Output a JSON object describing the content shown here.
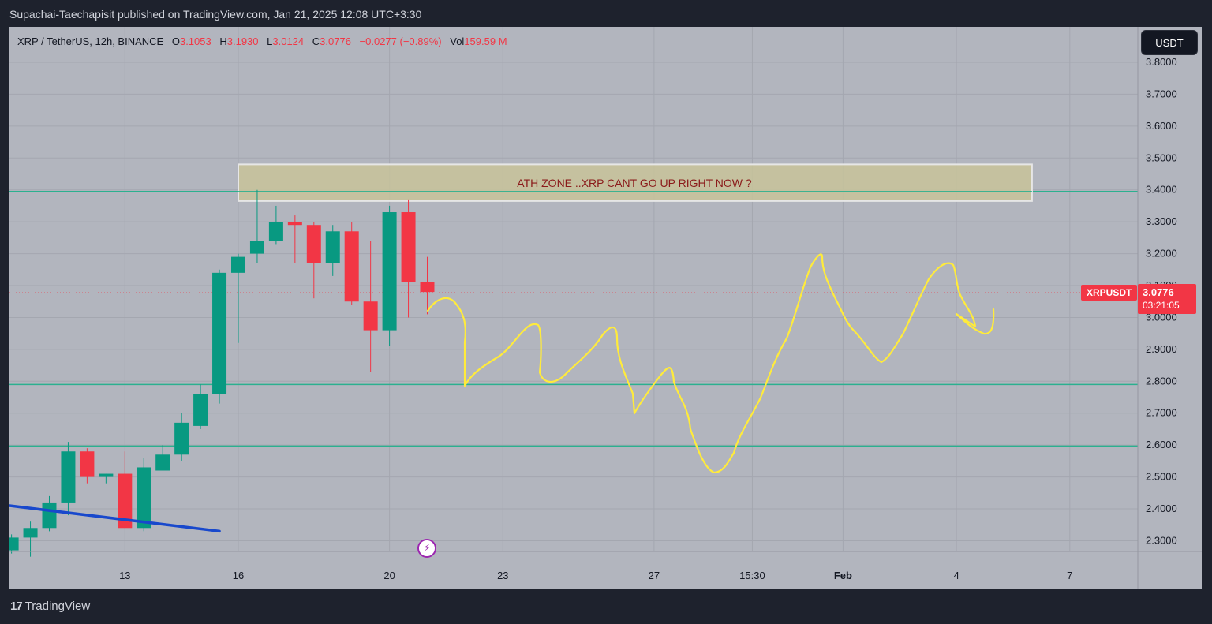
{
  "header": {
    "published": "Supachai-Taechapisit published on TradingView.com, Jan 21, 2025 12:08 UTC+3:30"
  },
  "legend": {
    "symbol": "XRP / TetherUS, 12h, BINANCE",
    "open_label": "O",
    "open": "3.1053",
    "high_label": "H",
    "high": "3.1930",
    "low_label": "L",
    "low": "3.0124",
    "close_label": "C",
    "close": "3.0776",
    "change": "−0.0277 (−0.89%)",
    "vol_label": "Vol",
    "vol": "159.59 M"
  },
  "currency_button": "USDT",
  "symbol_tag": "XRPUSDT",
  "price_tag": {
    "price": "3.0776",
    "countdown": "03:21:05"
  },
  "annotation": {
    "zone_text": "ATH ZONE ..XRP CANT GO UP RIGHT NOW ?"
  },
  "footer": {
    "logo": "17",
    "brand": "TradingView"
  },
  "colors": {
    "up": "#089981",
    "down": "#f23645",
    "background": "#b2b5be",
    "grid": "#a4a7b0",
    "level_line": "#2bb08f",
    "drawing": "#ffeb3b",
    "trendline": "#1848cc",
    "zone_fill": "#c8c39a"
  },
  "chart_data": {
    "type": "candlestick",
    "ylim": [
      2.24,
      3.82
    ],
    "y_ticks": [
      "3.8000",
      "3.7000",
      "3.6000",
      "3.5000",
      "3.4000",
      "3.3000",
      "3.2000",
      "3.1000",
      "3.0000",
      "2.9000",
      "2.8000",
      "2.7000",
      "2.6000",
      "2.5000",
      "2.4000",
      "2.3000"
    ],
    "x_ticks": [
      {
        "label": "13",
        "day": 13
      },
      {
        "label": "16",
        "day": 16
      },
      {
        "label": "20",
        "day": 20
      },
      {
        "label": "23",
        "day": 23
      },
      {
        "label": "27",
        "day": 27
      },
      {
        "label": "15:30",
        "day": 29.6
      },
      {
        "label": "Feb",
        "day": 32
      },
      {
        "label": "4",
        "day": 35
      },
      {
        "label": "7",
        "day": 38
      }
    ],
    "candles": [
      {
        "day": 10.0,
        "o": 2.27,
        "h": 2.32,
        "l": 2.26,
        "c": 2.31
      },
      {
        "day": 10.5,
        "o": 2.31,
        "h": 2.36,
        "l": 2.25,
        "c": 2.34
      },
      {
        "day": 11.0,
        "o": 2.34,
        "h": 2.44,
        "l": 2.33,
        "c": 2.42
      },
      {
        "day": 11.5,
        "o": 2.42,
        "h": 2.61,
        "l": 2.38,
        "c": 2.58
      },
      {
        "day": 12.0,
        "o": 2.58,
        "h": 2.59,
        "l": 2.48,
        "c": 2.5
      },
      {
        "day": 12.5,
        "o": 2.5,
        "h": 2.51,
        "l": 2.48,
        "c": 2.51
      },
      {
        "day": 13.0,
        "o": 2.51,
        "h": 2.58,
        "l": 2.34,
        "c": 2.34
      },
      {
        "day": 13.5,
        "o": 2.34,
        "h": 2.56,
        "l": 2.33,
        "c": 2.53
      },
      {
        "day": 14.0,
        "o": 2.52,
        "h": 2.6,
        "l": 2.52,
        "c": 2.57
      },
      {
        "day": 14.5,
        "o": 2.57,
        "h": 2.7,
        "l": 2.55,
        "c": 2.67
      },
      {
        "day": 15.0,
        "o": 2.66,
        "h": 2.79,
        "l": 2.65,
        "c": 2.76
      },
      {
        "day": 15.5,
        "o": 2.76,
        "h": 3.15,
        "l": 2.73,
        "c": 3.14
      },
      {
        "day": 16.0,
        "o": 3.14,
        "h": 3.2,
        "l": 2.92,
        "c": 3.19
      },
      {
        "day": 16.5,
        "o": 3.2,
        "h": 3.4,
        "l": 3.17,
        "c": 3.24
      },
      {
        "day": 17.0,
        "o": 3.24,
        "h": 3.35,
        "l": 3.23,
        "c": 3.3
      },
      {
        "day": 17.5,
        "o": 3.3,
        "h": 3.32,
        "l": 3.17,
        "c": 3.29
      },
      {
        "day": 18.0,
        "o": 3.29,
        "h": 3.3,
        "l": 3.06,
        "c": 3.17
      },
      {
        "day": 18.5,
        "o": 3.17,
        "h": 3.29,
        "l": 3.13,
        "c": 3.27
      },
      {
        "day": 19.0,
        "o": 3.27,
        "h": 3.3,
        "l": 3.04,
        "c": 3.05
      },
      {
        "day": 19.5,
        "o": 3.05,
        "h": 3.24,
        "l": 2.83,
        "c": 2.96
      },
      {
        "day": 20.0,
        "o": 2.96,
        "h": 3.35,
        "l": 2.91,
        "c": 3.33
      },
      {
        "day": 20.5,
        "o": 3.33,
        "h": 3.37,
        "l": 3.0,
        "c": 3.11
      },
      {
        "day": 21.0,
        "o": 3.11,
        "h": 3.19,
        "l": 3.01,
        "c": 3.08
      }
    ],
    "horizontal_levels": [
      3.395,
      2.79,
      2.597
    ],
    "last_price": 3.0776,
    "trendline": {
      "from": {
        "day": 9.95,
        "price": 2.41
      },
      "to": {
        "day": 15.5,
        "price": 2.33
      }
    },
    "zone": {
      "day_from": 16.0,
      "day_to": 37.0,
      "price_low": 3.365,
      "price_high": 3.48
    }
  }
}
